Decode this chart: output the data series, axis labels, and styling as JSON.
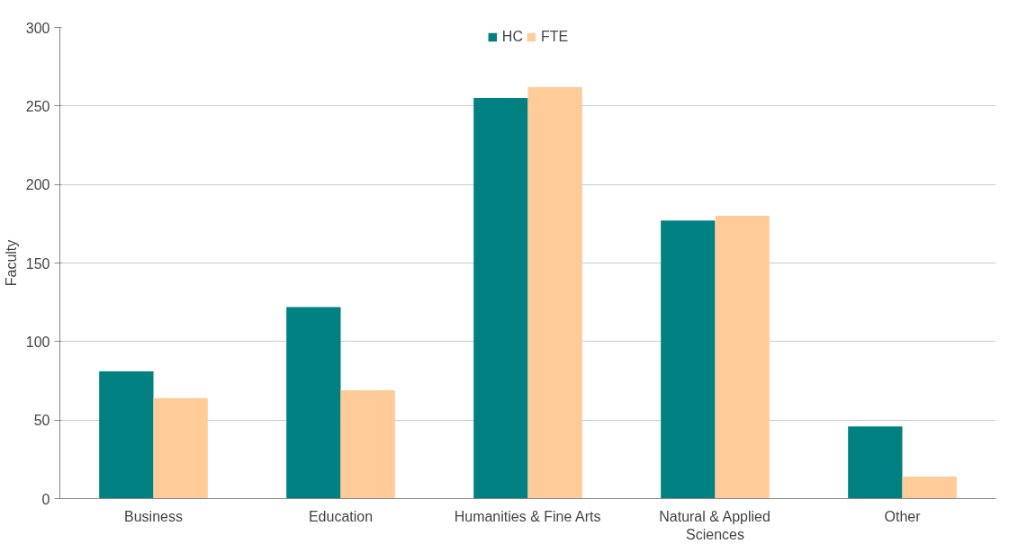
{
  "chart_data": {
    "type": "bar",
    "ylabel": "Faculty",
    "categories": [
      "Business",
      "Education",
      "Humanities & Fine Arts",
      "Natural & Applied Sciences",
      "Other"
    ],
    "series": [
      {
        "name": "HC",
        "color": "#008080",
        "values": [
          81,
          122,
          255,
          177,
          46
        ]
      },
      {
        "name": "FTE",
        "color": "#ffcc99",
        "values": [
          64,
          69,
          262,
          180,
          14
        ]
      }
    ],
    "ylim": [
      0,
      300
    ],
    "yticks": [
      0,
      50,
      100,
      150,
      200,
      250,
      300
    ],
    "grid": "y",
    "legend": "top"
  }
}
